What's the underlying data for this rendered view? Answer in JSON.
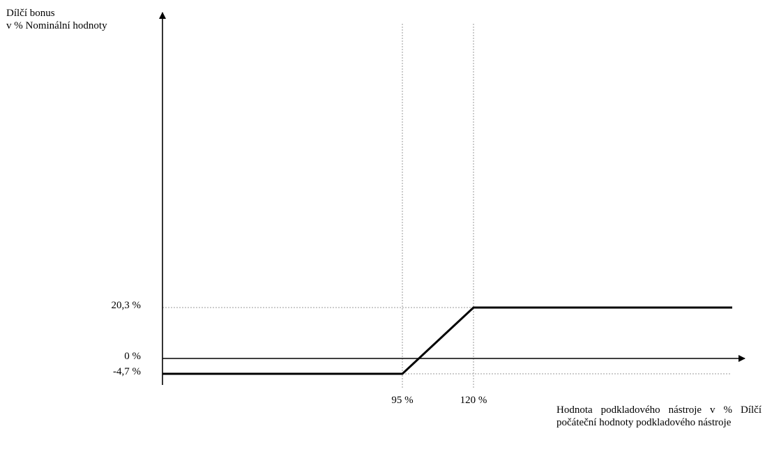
{
  "chart_data": {
    "type": "line",
    "ylabel_lines": [
      "Dílčí bonus",
      "v % Nominální hodnoty"
    ],
    "xlabel": "Hodnota podkladového nástroje v % Dílčí počáteční hodnoty podkladového nástroje",
    "y_ticks": [
      {
        "value": 20.3,
        "label": "20,3 %"
      },
      {
        "value": 0,
        "label": "0 %"
      },
      {
        "value": -4.7,
        "label": "-4,7 %"
      }
    ],
    "x_ticks": [
      {
        "value": 95,
        "label": "95 %"
      },
      {
        "value": 120,
        "label": "120 %"
      }
    ],
    "series": [
      {
        "points": [
          [
            20,
            -4.7
          ],
          [
            95,
            -4.7
          ],
          [
            120,
            20.3
          ],
          [
            210,
            20.3
          ]
        ]
      }
    ],
    "reference_lines": {
      "x": [
        95,
        120
      ],
      "y": [
        20.3,
        -4.7
      ]
    },
    "grid": false,
    "legend": "none"
  },
  "colors": {
    "line": "#000000",
    "axis": "#000000",
    "reference": "#9a9a9a"
  }
}
